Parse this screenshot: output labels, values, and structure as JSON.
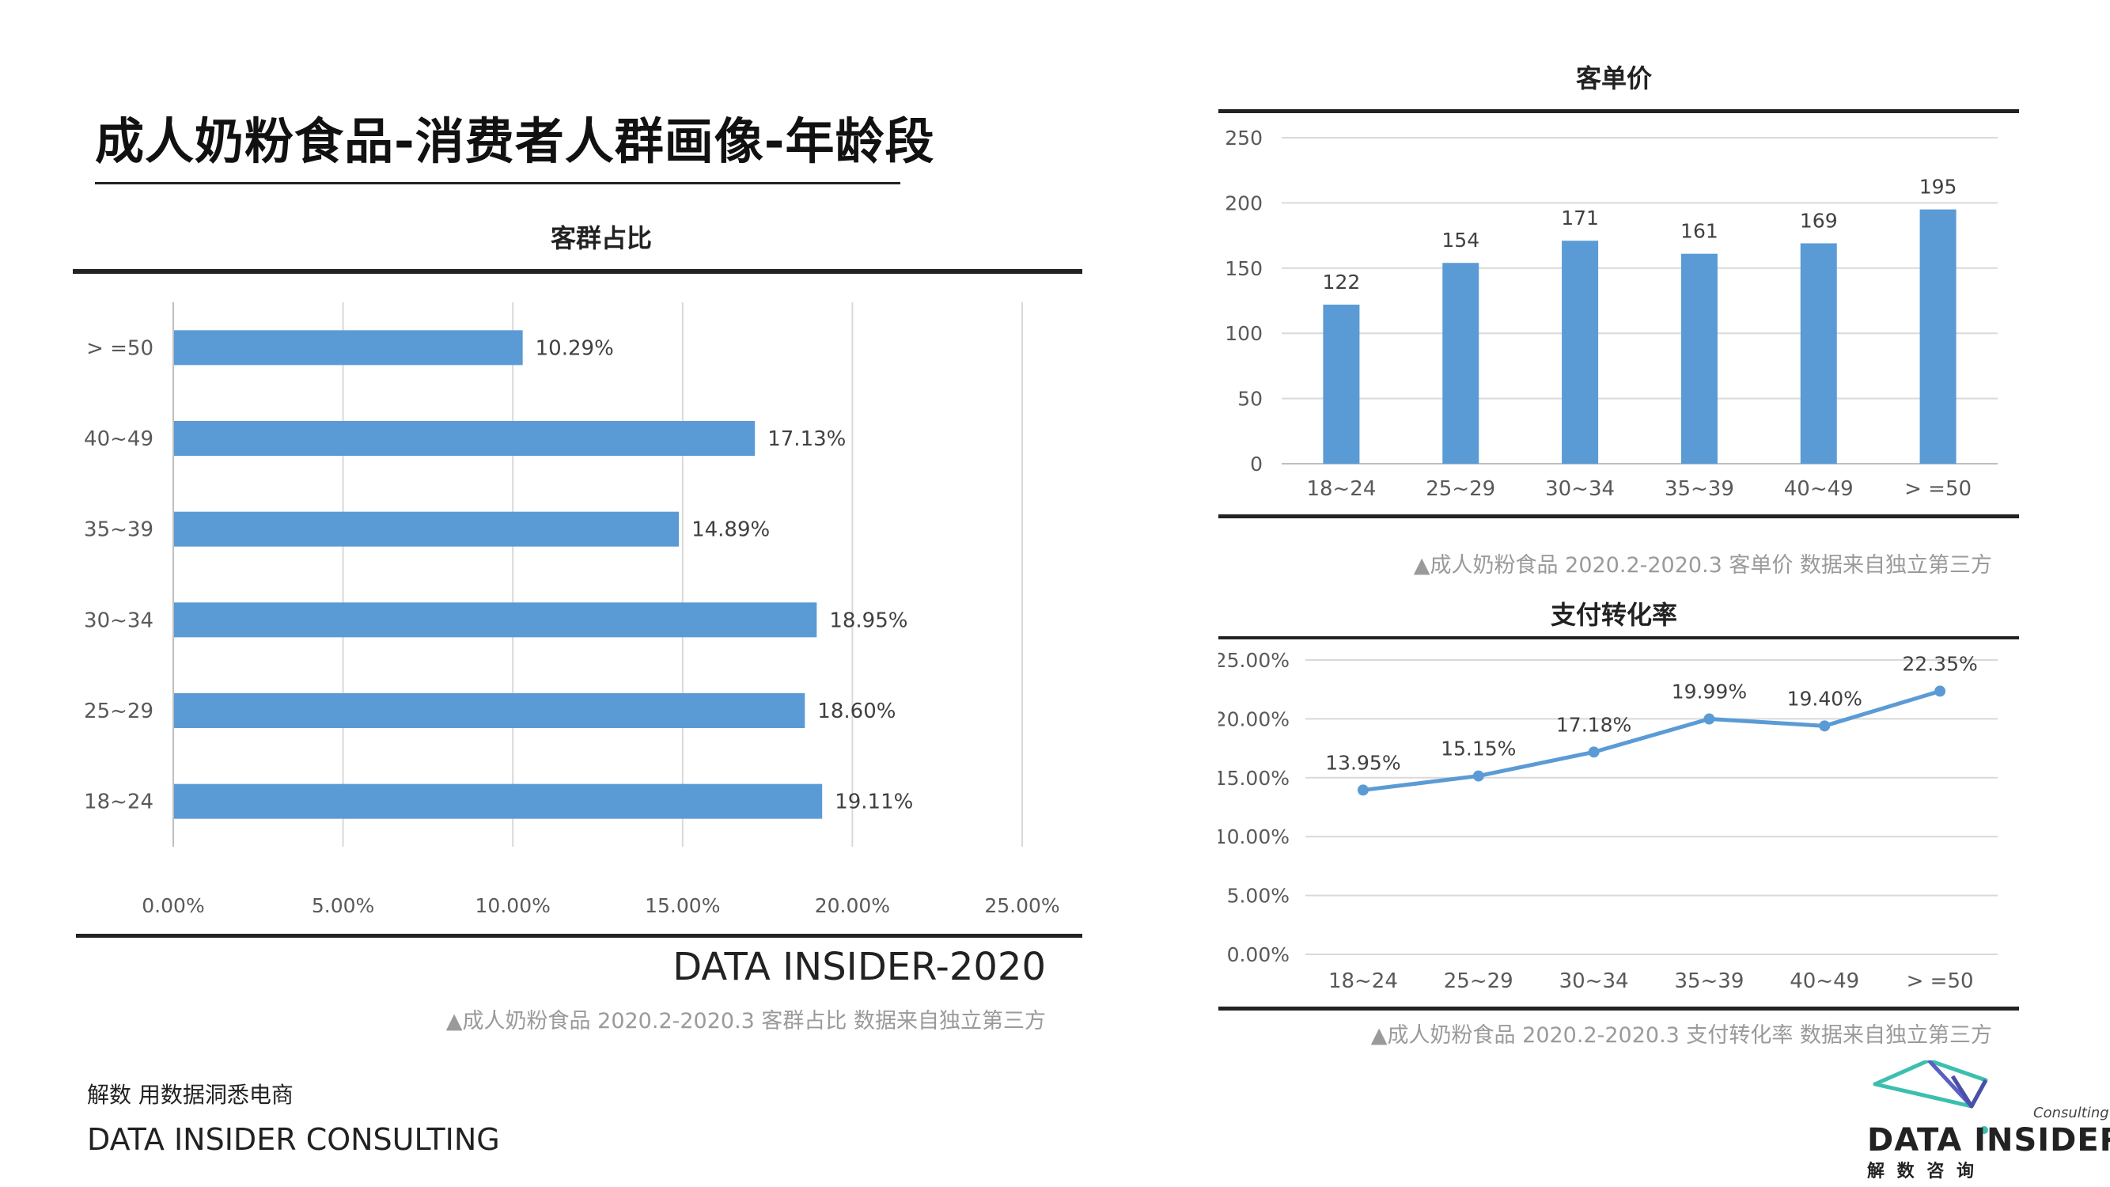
{
  "page": {
    "title": "成人奶粉食品-消费者人群画像-年龄段",
    "brand_label": "DATA INSIDER-2020",
    "slogan": "解数 用数据洞悉电商",
    "consulting_name": "DATA INSIDER CONSULTING",
    "logo": {
      "small_text": "Consulting",
      "main_text": "DATA INSIDER",
      "sub_text": "解 数 咨 询"
    },
    "colors": {
      "bar": "#5b9bd5",
      "line": "#5b9bd5",
      "rule": "#222222",
      "grid": "#d9d9d9",
      "source": "#9a9a9a"
    }
  },
  "chart_data": [
    {
      "id": "share",
      "type": "bar",
      "orientation": "horizontal",
      "title": "客群占比",
      "categories": [
        ">=50",
        "40~49",
        "35~39",
        "30~34",
        "25~29",
        "18~24"
      ],
      "category_labels": [
        "> =50",
        "40~49",
        "35~39",
        "30~34",
        "25~29",
        "18~24"
      ],
      "values": [
        10.29,
        17.13,
        14.89,
        18.95,
        18.6,
        19.11
      ],
      "data_labels": [
        "10.29%",
        "17.13%",
        "14.89%",
        "18.95%",
        "18.60%",
        "19.11%"
      ],
      "xlim": [
        0,
        25
      ],
      "ticks": [
        0,
        5,
        10,
        15,
        20,
        25
      ],
      "tick_labels": [
        "0.00%",
        "5.00%",
        "10.00%",
        "15.00%",
        "20.00%",
        "25.00%"
      ],
      "source": "▲成人奶粉食品  2020.2-2020.3 客群占比 数据来自独立第三方"
    },
    {
      "id": "unit-price",
      "type": "bar",
      "title": "客单价",
      "categories": [
        "18~24",
        "25~29",
        "30~34",
        "35~39",
        "40~49",
        ">=50"
      ],
      "category_labels": [
        "18~24",
        "25~29",
        "30~34",
        "35~39",
        "40~49",
        "> =50"
      ],
      "values": [
        122,
        154,
        171,
        161,
        169,
        195
      ],
      "data_labels": [
        "122",
        "154",
        "171",
        "161",
        "169",
        "195"
      ],
      "ylim": [
        0,
        250
      ],
      "ticks": [
        0,
        50,
        100,
        150,
        200,
        250
      ],
      "tick_labels": [
        "0",
        "50",
        "100",
        "150",
        "200",
        "250"
      ],
      "source": "▲成人奶粉食品 2020.2-2020.3 客单价 数据来自独立第三方"
    },
    {
      "id": "conversion",
      "type": "line",
      "title": "支付转化率",
      "categories": [
        "18~24",
        "25~29",
        "30~34",
        "35~39",
        "40~49",
        ">=50"
      ],
      "category_labels": [
        "18~24",
        "25~29",
        "30~34",
        "35~39",
        "40~49",
        "> =50"
      ],
      "values": [
        13.95,
        15.15,
        17.18,
        19.99,
        19.4,
        22.35
      ],
      "data_labels": [
        "13.95%",
        "15.15%",
        "17.18%",
        "19.99%",
        "19.40%",
        "22.35%"
      ],
      "ylim": [
        0,
        25
      ],
      "ticks": [
        0,
        5,
        10,
        15,
        20,
        25
      ],
      "tick_labels": [
        "0.00%",
        "5.00%",
        "10.00%",
        "15.00%",
        "20.00%",
        "25.00%"
      ],
      "source": "▲成人奶粉食品 2020.2-2020.3 支付转化率 数据来自独立第三方"
    }
  ]
}
